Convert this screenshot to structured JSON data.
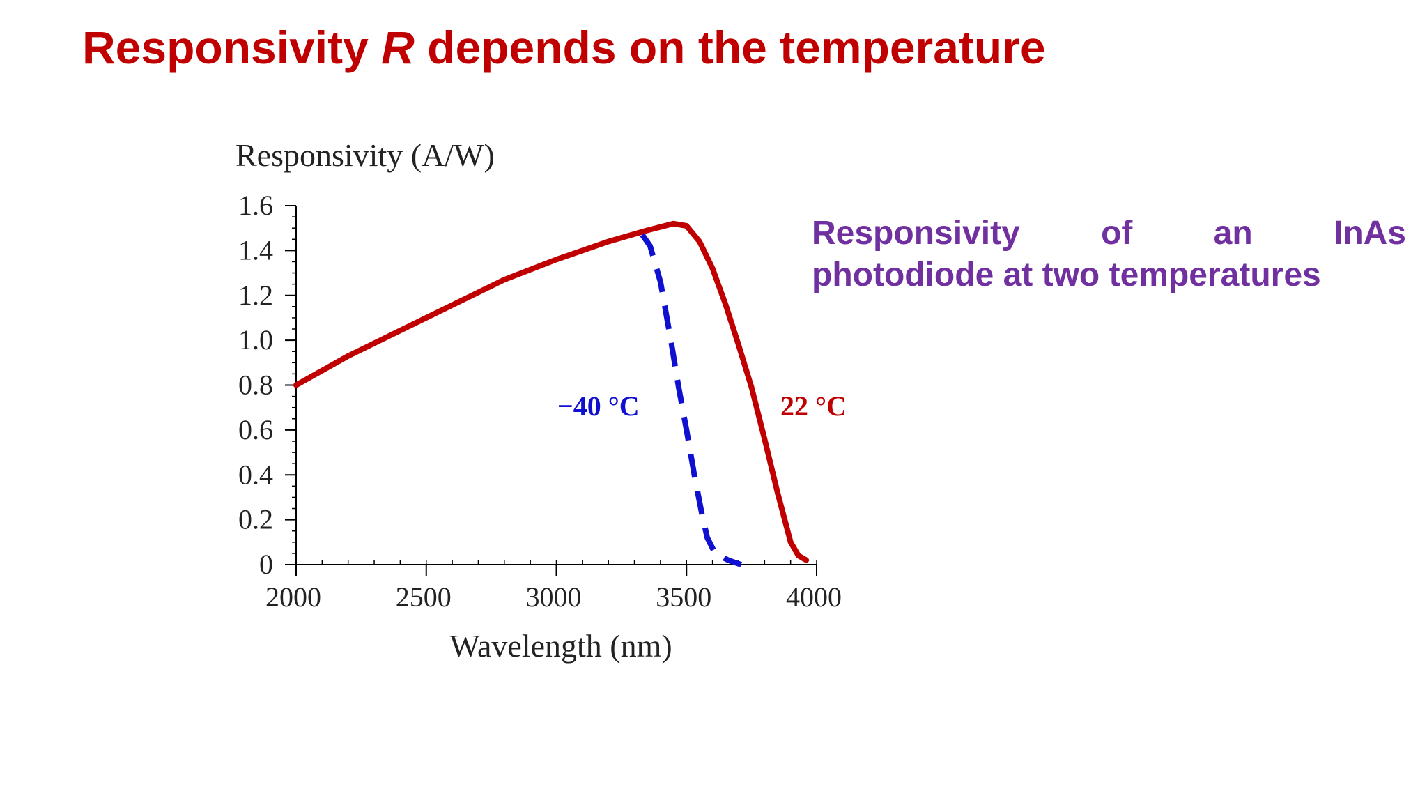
{
  "slide": {
    "title_prefix": "Responsivity ",
    "title_symbol": "R",
    "title_suffix": " depends on the temperature",
    "caption_words_line1": [
      "Responsivity",
      "of",
      "an",
      "InAs"
    ],
    "caption_line2": "photodiode at two temperatures"
  },
  "colors": {
    "title": "#c00000",
    "caption": "#7030a0",
    "series_22c": "#c00000",
    "series_minus40c": "#1010d0",
    "axis": "#000000"
  },
  "chart_data": {
    "type": "line",
    "title": "",
    "ylabel": "Responsivity (A/W)",
    "xlabel": "Wavelength (nm)",
    "xlim": [
      2000,
      4000
    ],
    "ylim": [
      0,
      1.6
    ],
    "xticks": [
      "2000",
      "2500",
      "3000",
      "3500",
      "4000"
    ],
    "yticks": [
      "0",
      "0.2",
      "0.4",
      "0.6",
      "0.8",
      "1.0",
      "1.2",
      "1.4",
      "1.6"
    ],
    "grid": false,
    "legend": "none",
    "series": [
      {
        "name": "22 °C",
        "line_style": "solid",
        "label_position": "right of the 22 °C curve falling edge",
        "points": [
          [
            2000,
            0.8
          ],
          [
            2200,
            0.93
          ],
          [
            2500,
            1.1
          ],
          [
            2800,
            1.27
          ],
          [
            3000,
            1.36
          ],
          [
            3200,
            1.44
          ],
          [
            3350,
            1.49
          ],
          [
            3450,
            1.52
          ],
          [
            3500,
            1.51
          ],
          [
            3550,
            1.44
          ],
          [
            3600,
            1.32
          ],
          [
            3650,
            1.16
          ],
          [
            3700,
            0.98
          ],
          [
            3750,
            0.79
          ],
          [
            3800,
            0.56
          ],
          [
            3850,
            0.32
          ],
          [
            3900,
            0.1
          ],
          [
            3930,
            0.04
          ],
          [
            3960,
            0.02
          ]
        ]
      },
      {
        "name": "−40 °C",
        "line_style": "dashed",
        "label_position": "left of the −40 °C curve falling edge",
        "points": [
          [
            3330,
            1.47
          ],
          [
            3360,
            1.42
          ],
          [
            3400,
            1.26
          ],
          [
            3440,
            1.0
          ],
          [
            3470,
            0.79
          ],
          [
            3500,
            0.6
          ],
          [
            3530,
            0.4
          ],
          [
            3560,
            0.22
          ],
          [
            3580,
            0.12
          ],
          [
            3610,
            0.05
          ],
          [
            3660,
            0.02
          ],
          [
            3710,
            0.0
          ]
        ]
      }
    ]
  }
}
